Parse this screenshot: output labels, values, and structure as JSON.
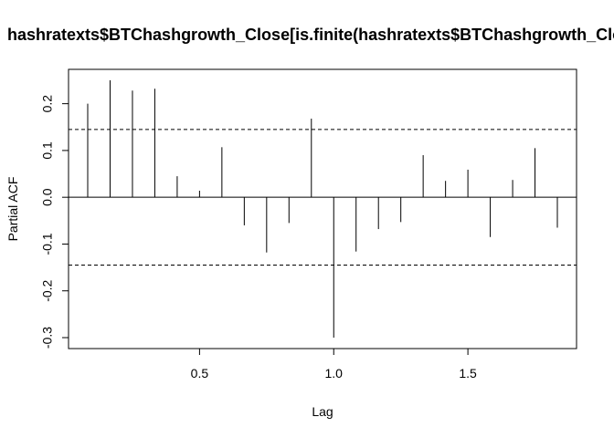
{
  "chart_data": {
    "type": "bar",
    "title": "hashratexts$BTChashgrowth_Close[is.finite(hashratexts$BTChashgrowth_Close)]",
    "xlabel": "Lag",
    "ylabel": "Partial ACF",
    "xlim": [
      0.0833,
      1.8333
    ],
    "ylim": [
      -0.3,
      0.25
    ],
    "x_ticks": [
      {
        "value": 0.5,
        "label": "0.5"
      },
      {
        "value": 1.0,
        "label": "1.0"
      },
      {
        "value": 1.5,
        "label": "1.5"
      }
    ],
    "y_ticks": [
      {
        "value": -0.3,
        "label": "-0.3"
      },
      {
        "value": -0.2,
        "label": "-0.2"
      },
      {
        "value": -0.1,
        "label": "-0.1"
      },
      {
        "value": 0.0,
        "label": "0.0"
      },
      {
        "value": 0.1,
        "label": "0.1"
      },
      {
        "value": 0.2,
        "label": "0.2"
      }
    ],
    "confidence_bounds": [
      0.145,
      -0.145
    ],
    "lags": [
      0.0833,
      0.1667,
      0.25,
      0.3333,
      0.4167,
      0.5,
      0.5833,
      0.6667,
      0.75,
      0.8333,
      0.9167,
      1.0,
      1.0833,
      1.1667,
      1.25,
      1.3333,
      1.4167,
      1.5,
      1.5833,
      1.6667,
      1.75,
      1.8333
    ],
    "values": [
      0.2,
      0.25,
      0.228,
      0.232,
      0.045,
      0.014,
      0.107,
      -0.06,
      -0.118,
      -0.055,
      0.168,
      -0.3,
      -0.116,
      -0.068,
      -0.053,
      0.09,
      0.035,
      0.059,
      -0.085,
      0.037,
      0.105,
      -0.065
    ],
    "colors": {
      "line": "#000000",
      "background": "#ffffff"
    }
  }
}
